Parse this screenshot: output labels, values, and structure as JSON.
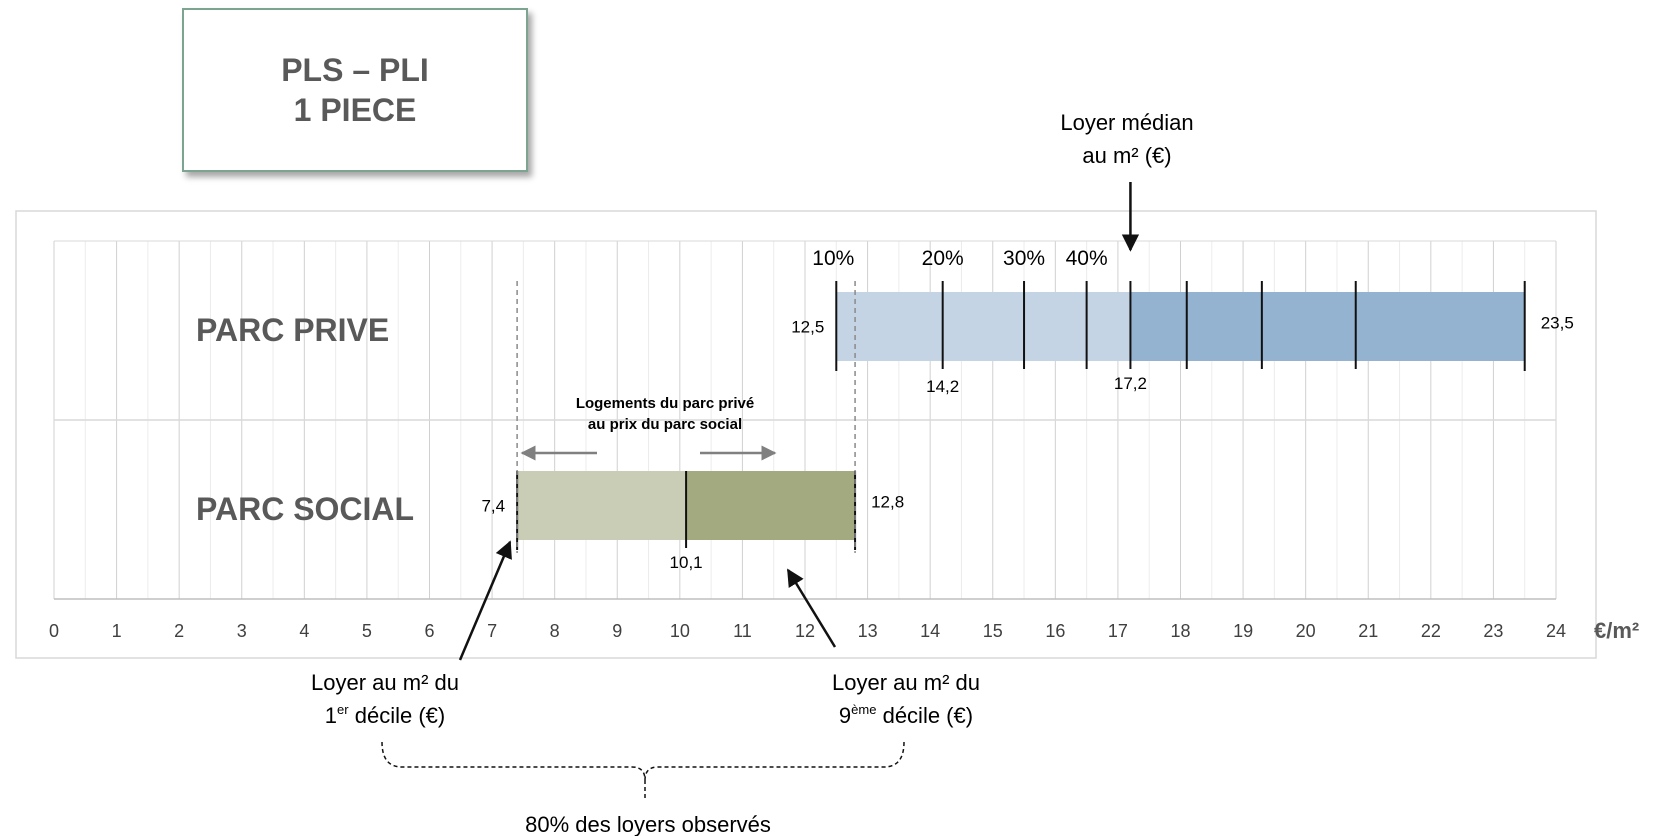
{
  "title": {
    "line1": "PLS – PLI",
    "line2": "1 PIECE"
  },
  "colors": {
    "prive_low": "#c5d4e5",
    "prive_high": "#94b3d0",
    "social_low": "#c9cdb5",
    "social_high": "#a3aa7f",
    "gridline": "#d9d9d9",
    "frame": "#d9d9d9",
    "title_border": "#7da391",
    "category_text": "#595959"
  },
  "chart_data": {
    "type": "bar",
    "orientation": "horizontal",
    "categories": [
      "PARC PRIVE",
      "PARC SOCIAL"
    ],
    "x_axis": {
      "range": [
        0,
        24
      ],
      "ticks": [
        0,
        1,
        2,
        3,
        4,
        5,
        6,
        7,
        8,
        9,
        10,
        11,
        12,
        13,
        14,
        15,
        16,
        17,
        18,
        19,
        20,
        21,
        22,
        23,
        24
      ],
      "unit_label": "€/m²",
      "minor_grid_step": 0.5
    },
    "series": [
      {
        "category": "PARC PRIVE",
        "start": 12.5,
        "end": 23.5,
        "median": 17.2,
        "decile_marks": [
          12.5,
          14.2,
          15.5,
          16.5,
          17.2,
          18.1,
          19.3,
          20.8,
          23.5
        ],
        "labels": {
          "start": "12,5",
          "end": "23,5",
          "mark_2": "14,2",
          "median": "17,2"
        }
      },
      {
        "category": "PARC SOCIAL",
        "start": 7.4,
        "end": 12.8,
        "median": 10.1,
        "decile_marks": [
          7.4,
          10.1,
          12.8
        ],
        "labels": {
          "start": "7,4",
          "end": "12,8",
          "median": "10,1"
        }
      }
    ],
    "percent_labels": [
      {
        "text": "10%",
        "x": 12.5
      },
      {
        "text": "20%",
        "x": 14.2
      },
      {
        "text": "30%",
        "x": 15.5
      },
      {
        "text": "40%",
        "x": 16.5
      }
    ],
    "annotations": {
      "median_line1": "Loyer médian",
      "median_line2": "au m² (€)",
      "overlap_line1": "Logements du parc privé",
      "overlap_line2": "au prix du parc social",
      "overlap_range": [
        7.4,
        12.8
      ],
      "d1_line1": "Loyer au m² du",
      "d1_num": "1",
      "d1_sup": "er",
      "d1_rest": " décile (€)",
      "d9_line1": "Loyer au m² du",
      "d9_num": "9",
      "d9_sup": "ème",
      "d9_rest": " décile (€)",
      "bracket_label": "80% des loyers observés"
    }
  }
}
